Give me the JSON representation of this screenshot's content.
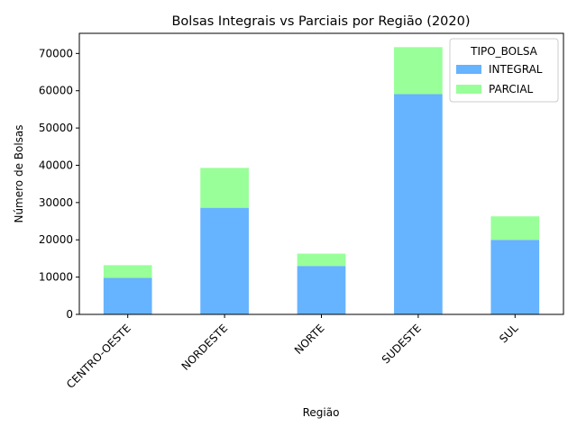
{
  "chart_data": {
    "type": "bar",
    "stacked": true,
    "title": "Bolsas Integrais vs Parciais por Região (2020)",
    "xlabel": "Região",
    "ylabel": "Número de Bolsas",
    "categories": [
      "CENTRO-OESTE",
      "NORDESTE",
      "NORTE",
      "SUDESTE",
      "SUL"
    ],
    "series": [
      {
        "name": "INTEGRAL",
        "color": "#66b3ff",
        "values": [
          9800,
          28600,
          13000,
          59100,
          20000
        ]
      },
      {
        "name": "PARCIAL",
        "color": "#99ff99",
        "values": [
          3400,
          10700,
          3300,
          12600,
          6300
        ]
      }
    ],
    "ylim": [
      0,
      75400
    ],
    "yticks": [
      0,
      10000,
      20000,
      30000,
      40000,
      50000,
      60000,
      70000
    ],
    "legend": {
      "title": "TIPO_BOLSA",
      "position": "top-right"
    },
    "grid": false
  }
}
